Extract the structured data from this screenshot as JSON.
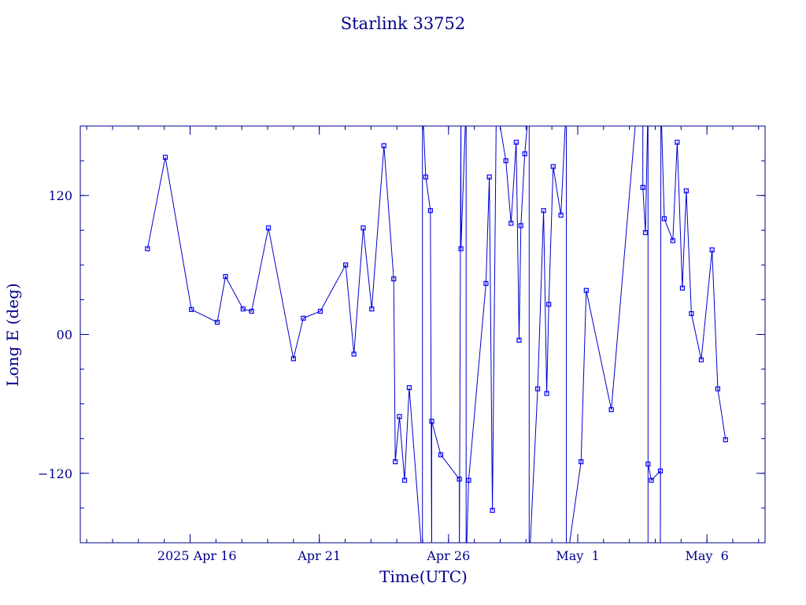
{
  "colors": {
    "ink": "#00008b",
    "line": "#0000cc",
    "marker": "#0000ff",
    "background": "#ffffff"
  },
  "chart_data": {
    "type": "line",
    "title": "Starlink 33752",
    "xlabel": "Time(UTC)",
    "ylabel": "Long E (deg)",
    "x_unit": "days, 2025-04-01 = day 1",
    "xlim": [
      11.75,
      8.25
    ],
    "ylim": [
      -180,
      180
    ],
    "y_major_ticks": [
      -120,
      0,
      120
    ],
    "y_tick_labels": [
      "−120",
      "00",
      "120"
    ],
    "y_minor_step": 30,
    "x_major_ticks": [
      {
        "day": 16,
        "label": "2025 Apr 16"
      },
      {
        "day": 21,
        "label": "Apr 21"
      },
      {
        "day": 26,
        "label": "Apr 26"
      },
      {
        "day": 31,
        "label": "May  1"
      },
      {
        "day": 36,
        "label": "May  6"
      }
    ],
    "x_minor_step": 1,
    "grid": false,
    "series": [
      {
        "markers": "small-square",
        "points": [
          [
            14.35,
            74
          ],
          [
            15.04,
            153
          ],
          [
            16.05,
            21.5
          ],
          [
            17.05,
            10.5
          ],
          [
            17.37,
            50
          ],
          [
            18.05,
            22
          ],
          [
            18.38,
            20
          ],
          [
            19.03,
            92
          ],
          [
            20.0,
            -21
          ],
          [
            20.38,
            14
          ],
          [
            21.04,
            20
          ],
          [
            22.02,
            60
          ],
          [
            22.34,
            -17
          ],
          [
            22.7,
            92
          ],
          [
            23.03,
            22
          ],
          [
            23.5,
            163
          ],
          [
            23.88,
            48
          ],
          [
            23.94,
            -110
          ],
          [
            24.1,
            -71
          ],
          [
            24.3,
            -126
          ],
          [
            24.48,
            -46
          ],
          [
            24.99,
            -196
          ],
          [
            24.99,
            200
          ],
          [
            25.12,
            136
          ],
          [
            25.3,
            107
          ],
          [
            25.35,
            -200
          ],
          [
            25.35,
            -75
          ],
          [
            25.7,
            -104
          ],
          [
            26.42,
            -125
          ],
          [
            26.42,
            -200
          ],
          [
            26.48,
            200
          ],
          [
            26.48,
            74
          ],
          [
            26.68,
            200
          ],
          [
            26.68,
            -200
          ],
          [
            26.78,
            -126
          ],
          [
            27.45,
            44
          ],
          [
            27.58,
            136
          ],
          [
            27.7,
            -152
          ],
          [
            27.85,
            200
          ],
          [
            28.22,
            150
          ],
          [
            28.42,
            96
          ],
          [
            28.62,
            166
          ],
          [
            28.73,
            -5
          ],
          [
            28.8,
            94
          ],
          [
            28.95,
            156
          ],
          [
            29.12,
            200
          ],
          [
            29.12,
            -200
          ],
          [
            29.45,
            -47
          ],
          [
            29.68,
            107
          ],
          [
            29.8,
            -51
          ],
          [
            29.88,
            26
          ],
          [
            30.05,
            145
          ],
          [
            30.35,
            103
          ],
          [
            30.56,
            200
          ],
          [
            30.56,
            -200
          ],
          [
            31.13,
            -110
          ],
          [
            31.33,
            38
          ],
          [
            32.3,
            -65
          ],
          [
            33.3,
            200
          ],
          [
            33.52,
            200
          ],
          [
            33.52,
            127
          ],
          [
            33.62,
            88
          ],
          [
            33.72,
            200
          ],
          [
            33.72,
            -200
          ],
          [
            33.72,
            -112
          ],
          [
            33.85,
            -126
          ],
          [
            34.2,
            -118
          ],
          [
            34.2,
            -200
          ],
          [
            34.22,
            200
          ],
          [
            34.35,
            100
          ],
          [
            34.68,
            81
          ],
          [
            34.85,
            166
          ],
          [
            35.05,
            40
          ],
          [
            35.2,
            124
          ],
          [
            35.4,
            18
          ],
          [
            35.78,
            -22
          ],
          [
            36.2,
            73
          ],
          [
            36.42,
            -47
          ],
          [
            36.72,
            -91
          ]
        ],
        "visible_markers": [
          [
            14.35,
            74
          ],
          [
            15.04,
            153
          ],
          [
            16.05,
            21.5
          ],
          [
            17.05,
            10.5
          ],
          [
            17.37,
            50
          ],
          [
            18.05,
            22
          ],
          [
            18.38,
            20
          ],
          [
            19.03,
            92
          ],
          [
            20.0,
            -21
          ],
          [
            20.38,
            14
          ],
          [
            21.04,
            20
          ],
          [
            22.02,
            60
          ],
          [
            22.34,
            -17
          ],
          [
            22.7,
            92
          ],
          [
            23.03,
            22
          ],
          [
            23.5,
            163
          ],
          [
            23.88,
            48
          ],
          [
            23.94,
            -110
          ],
          [
            24.1,
            -71
          ],
          [
            24.3,
            -126
          ],
          [
            24.48,
            -46
          ],
          [
            25.12,
            136
          ],
          [
            25.3,
            107
          ],
          [
            25.35,
            -75
          ],
          [
            25.7,
            -104
          ],
          [
            26.42,
            -125
          ],
          [
            26.48,
            74
          ],
          [
            26.78,
            -126
          ],
          [
            27.45,
            44
          ],
          [
            27.58,
            136
          ],
          [
            27.7,
            -152
          ],
          [
            28.22,
            150
          ],
          [
            28.42,
            96
          ],
          [
            28.62,
            166
          ],
          [
            28.73,
            -5
          ],
          [
            28.8,
            94
          ],
          [
            28.95,
            156
          ],
          [
            29.45,
            -47
          ],
          [
            29.68,
            107
          ],
          [
            29.8,
            -51
          ],
          [
            29.88,
            26
          ],
          [
            30.05,
            145
          ],
          [
            30.35,
            103
          ],
          [
            31.13,
            -110
          ],
          [
            31.33,
            38
          ],
          [
            32.3,
            -65
          ],
          [
            33.52,
            127
          ],
          [
            33.62,
            88
          ],
          [
            33.72,
            -112
          ],
          [
            33.85,
            -126
          ],
          [
            34.2,
            -118
          ],
          [
            34.35,
            100
          ],
          [
            34.68,
            81
          ],
          [
            34.85,
            166
          ],
          [
            35.05,
            40
          ],
          [
            35.2,
            124
          ],
          [
            35.4,
            18
          ],
          [
            35.78,
            -22
          ],
          [
            36.2,
            73
          ],
          [
            36.42,
            -47
          ],
          [
            36.72,
            -91
          ]
        ]
      }
    ]
  }
}
